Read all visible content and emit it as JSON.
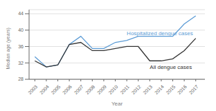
{
  "chart_data": {
    "type": "line",
    "xlabel": "Year",
    "ylabel": "Median age (years)",
    "x": [
      2003,
      2004,
      2005,
      2006,
      2007,
      2008,
      2009,
      2010,
      2011,
      2012,
      2013,
      2014,
      2015,
      2016,
      2017
    ],
    "series": [
      {
        "name": "Hospitalized dengue cases",
        "color": "#5b9bd5",
        "values": [
          33.5,
          31.0,
          31.5,
          36.5,
          38.5,
          35.5,
          35.5,
          37.0,
          37.5,
          38.5,
          38.5,
          38.5,
          38.5,
          41.5,
          43.5
        ]
      },
      {
        "name": "All dengue cases",
        "color": "#333333",
        "values": [
          32.5,
          31.0,
          31.5,
          36.5,
          37.0,
          35.0,
          35.0,
          35.5,
          36.0,
          36.0,
          32.5,
          32.5,
          33.0,
          35.0,
          38.0
        ]
      }
    ],
    "xlim": [
      2002.5,
      2017.8
    ],
    "xticks": [
      2003,
      2004,
      2005,
      2006,
      2007,
      2008,
      2009,
      2010,
      2011,
      2012,
      2013,
      2014,
      2015,
      2016,
      2017
    ],
    "ylim": [
      28,
      45
    ],
    "yticks": [
      28,
      32,
      36,
      40,
      44
    ],
    "grid": true
  }
}
